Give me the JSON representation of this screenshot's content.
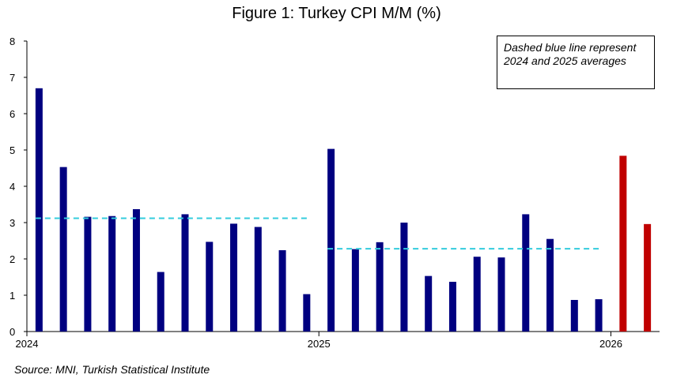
{
  "chart_data": {
    "type": "bar",
    "title": "Figure 1: Turkey CPI M/M (%)",
    "xlabel": "",
    "ylabel": "",
    "ylim": [
      0,
      8
    ],
    "yticks": [
      0,
      1,
      2,
      3,
      4,
      5,
      6,
      7,
      8
    ],
    "x_tick_labels": [
      "2024",
      "2025",
      "2026"
    ],
    "grid": false,
    "categories": [
      "2024-01",
      "2024-02",
      "2024-03",
      "2024-04",
      "2024-05",
      "2024-06",
      "2024-07",
      "2024-08",
      "2024-09",
      "2024-10",
      "2024-11",
      "2024-12",
      "2025-01",
      "2025-02",
      "2025-03",
      "2025-04",
      "2025-05",
      "2025-06",
      "2025-07",
      "2025-08",
      "2025-09",
      "2025-10",
      "2025-11",
      "2025-12",
      "2026-01",
      "2026-02"
    ],
    "values": [
      6.7,
      4.53,
      3.16,
      3.18,
      3.37,
      1.64,
      3.23,
      2.47,
      2.97,
      2.88,
      2.24,
      1.03,
      5.03,
      2.27,
      2.46,
      3.0,
      1.53,
      1.37,
      2.06,
      2.04,
      3.23,
      2.55,
      0.87,
      0.89,
      4.84,
      2.96
    ],
    "bar_colors": [
      "#000080",
      "#000080",
      "#000080",
      "#000080",
      "#000080",
      "#000080",
      "#000080",
      "#000080",
      "#000080",
      "#000080",
      "#000080",
      "#000080",
      "#000080",
      "#000080",
      "#000080",
      "#000080",
      "#000080",
      "#000080",
      "#000080",
      "#000080",
      "#000080",
      "#000080",
      "#000080",
      "#000080",
      "#c00000",
      "#c00000"
    ],
    "reference_lines": [
      {
        "label": "2024 average",
        "value": 3.12,
        "from": "2024-01",
        "to": "2024-12",
        "color": "#33ccdd",
        "style": "dashed"
      },
      {
        "label": "2025 average",
        "value": 2.28,
        "from": "2025-01",
        "to": "2025-12",
        "color": "#33ccdd",
        "style": "dashed"
      }
    ],
    "annotation": "Dashed blue line represent 2024 and 2025 averages",
    "source": "Source: MNI, Turkish Statistical Institute"
  }
}
